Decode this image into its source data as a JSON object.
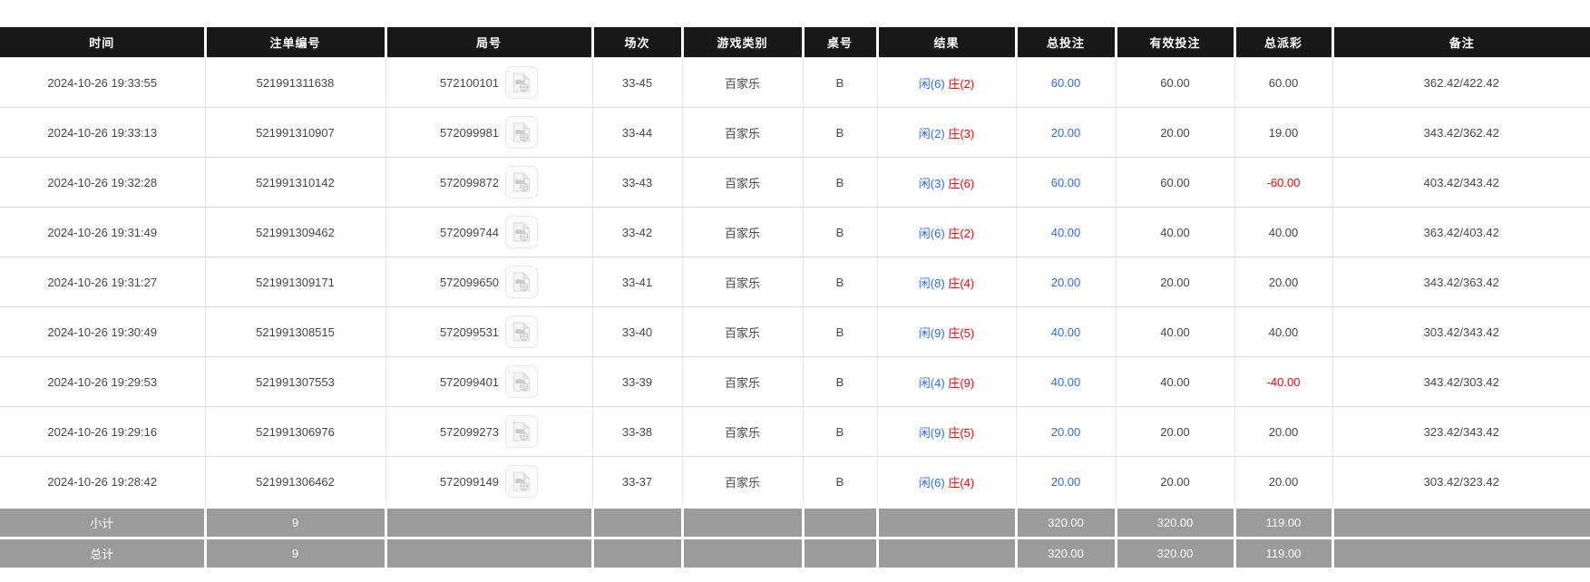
{
  "table": {
    "columns": [
      {
        "key": "time",
        "label": "时间"
      },
      {
        "key": "bet_id",
        "label": "注单编号"
      },
      {
        "key": "round_id",
        "label": "局号"
      },
      {
        "key": "session",
        "label": "场次"
      },
      {
        "key": "game_type",
        "label": "游戏类别"
      },
      {
        "key": "table_no",
        "label": "桌号"
      },
      {
        "key": "result",
        "label": "结果"
      },
      {
        "key": "total_bet",
        "label": "总投注"
      },
      {
        "key": "valid_bet",
        "label": "有效投注"
      },
      {
        "key": "total_payout",
        "label": "总派彩"
      },
      {
        "key": "remark",
        "label": "备注"
      }
    ],
    "rows": [
      {
        "time": "2024-10-26 19:33:55",
        "bet_id": "521991311638",
        "round_id": "572100101",
        "session": "33-45",
        "game_type": "百家乐",
        "table_no": "B",
        "result_player": "闲(6)",
        "result_banker": "庄(2)",
        "total_bet": "60.00",
        "valid_bet": "60.00",
        "total_payout": "60.00",
        "remark": "362.42/422.42"
      },
      {
        "time": "2024-10-26 19:33:13",
        "bet_id": "521991310907",
        "round_id": "572099981",
        "session": "33-44",
        "game_type": "百家乐",
        "table_no": "B",
        "result_player": "闲(2)",
        "result_banker": "庄(3)",
        "total_bet": "20.00",
        "valid_bet": "20.00",
        "total_payout": "19.00",
        "remark": "343.42/362.42"
      },
      {
        "time": "2024-10-26 19:32:28",
        "bet_id": "521991310142",
        "round_id": "572099872",
        "session": "33-43",
        "game_type": "百家乐",
        "table_no": "B",
        "result_player": "闲(3)",
        "result_banker": "庄(6)",
        "total_bet": "60.00",
        "valid_bet": "60.00",
        "total_payout": "-60.00",
        "remark": "403.42/343.42"
      },
      {
        "time": "2024-10-26 19:31:49",
        "bet_id": "521991309462",
        "round_id": "572099744",
        "session": "33-42",
        "game_type": "百家乐",
        "table_no": "B",
        "result_player": "闲(6)",
        "result_banker": "庄(2)",
        "total_bet": "40.00",
        "valid_bet": "40.00",
        "total_payout": "40.00",
        "remark": "363.42/403.42"
      },
      {
        "time": "2024-10-26 19:31:27",
        "bet_id": "521991309171",
        "round_id": "572099650",
        "session": "33-41",
        "game_type": "百家乐",
        "table_no": "B",
        "result_player": "闲(8)",
        "result_banker": "庄(4)",
        "total_bet": "20.00",
        "valid_bet": "20.00",
        "total_payout": "20.00",
        "remark": "343.42/363.42"
      },
      {
        "time": "2024-10-26 19:30:49",
        "bet_id": "521991308515",
        "round_id": "572099531",
        "session": "33-40",
        "game_type": "百家乐",
        "table_no": "B",
        "result_player": "闲(9)",
        "result_banker": "庄(5)",
        "total_bet": "40.00",
        "valid_bet": "40.00",
        "total_payout": "40.00",
        "remark": "303.42/343.42"
      },
      {
        "time": "2024-10-26 19:29:53",
        "bet_id": "521991307553",
        "round_id": "572099401",
        "session": "33-39",
        "game_type": "百家乐",
        "table_no": "B",
        "result_player": "闲(4)",
        "result_banker": "庄(9)",
        "total_bet": "40.00",
        "valid_bet": "40.00",
        "total_payout": "-40.00",
        "remark": "343.42/303.42"
      },
      {
        "time": "2024-10-26 19:29:16",
        "bet_id": "521991306976",
        "round_id": "572099273",
        "session": "33-38",
        "game_type": "百家乐",
        "table_no": "B",
        "result_player": "闲(9)",
        "result_banker": "庄(5)",
        "total_bet": "20.00",
        "valid_bet": "20.00",
        "total_payout": "20.00",
        "remark": "323.42/343.42"
      },
      {
        "time": "2024-10-26 19:28:42",
        "bet_id": "521991306462",
        "round_id": "572099149",
        "session": "33-37",
        "game_type": "百家乐",
        "table_no": "B",
        "result_player": "闲(6)",
        "result_banker": "庄(4)",
        "total_bet": "20.00",
        "valid_bet": "20.00",
        "total_payout": "20.00",
        "remark": "303.42/323.42"
      }
    ],
    "summary_rows": [
      {
        "label": "小计",
        "count": "9",
        "total_bet": "320.00",
        "valid_bet": "320.00",
        "total_payout": "119.00"
      },
      {
        "label": "总计",
        "count": "9",
        "total_bet": "320.00",
        "valid_bet": "320.00",
        "total_payout": "119.00"
      }
    ],
    "colors": {
      "header_bg": "#181818",
      "summary_bg": "#9b9b9b",
      "bet_blue": "#2c6bf2",
      "loss_red": "#ff0000"
    }
  }
}
